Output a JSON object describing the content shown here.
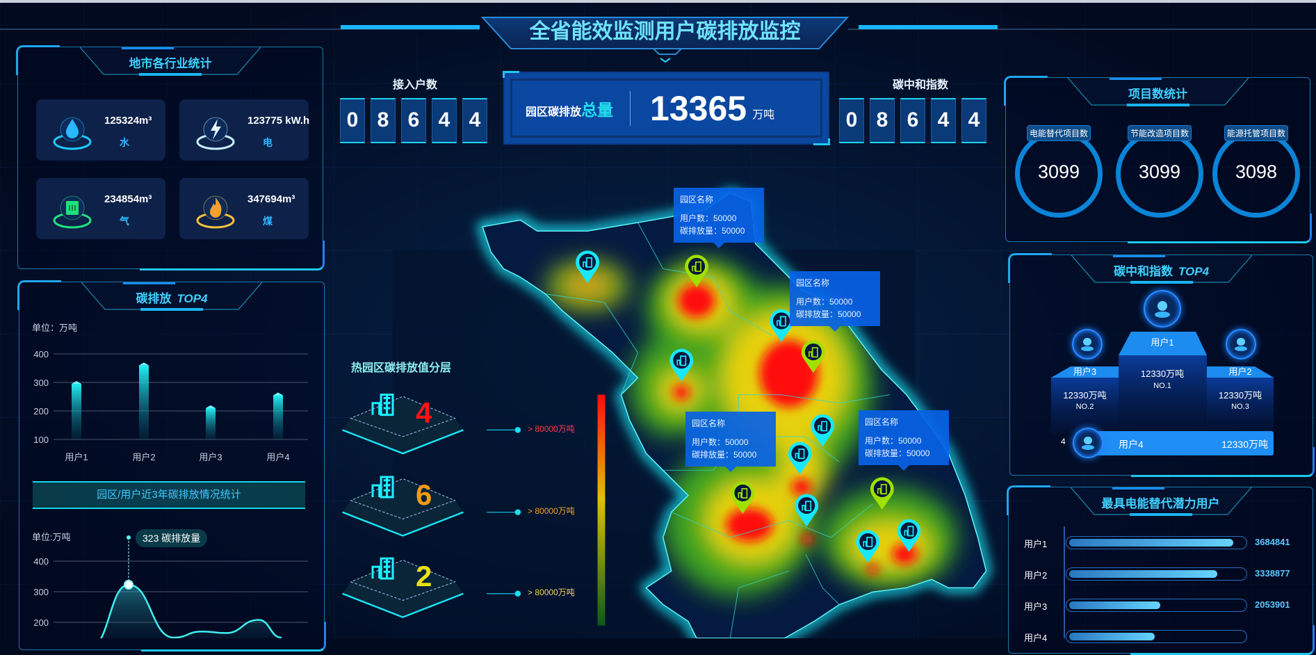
{
  "header": {
    "title": "全省能效监测用户碳排放监控"
  },
  "industry": {
    "title": "地市各行业统计",
    "items": [
      {
        "value": "125324m³",
        "label": "水",
        "icon": "water-drop-icon",
        "color": "#1ec8ff"
      },
      {
        "value": "123775 kW.h",
        "label": "电",
        "icon": "lightning-icon",
        "color": "#c8ecff"
      },
      {
        "value": "234854m³",
        "label": "气",
        "icon": "gas-icon",
        "color": "#22e07a"
      },
      {
        "value": "347694m³",
        "label": "煤",
        "icon": "flame-icon",
        "color": "#f2c23a"
      }
    ]
  },
  "emission_top": {
    "title": "碳排放",
    "badge": "TOP4",
    "unit": "单位：万吨"
  },
  "trend": {
    "title": "园区/用户近3年碳排放情况统计",
    "unit": "单位:万吨",
    "tooltip_value": "323",
    "tooltip_label": "碳排放量"
  },
  "chart_data": [
    {
      "type": "bar",
      "categories": [
        "用户1",
        "用户2",
        "用户3",
        "用户4"
      ],
      "values": [
        295,
        360,
        210,
        255
      ],
      "ylabel": "单位：万吨",
      "ylim": [
        100,
        400
      ],
      "yticks": [
        "100",
        "200",
        "300",
        "400"
      ],
      "grid": true,
      "color": "#22e6f0"
    },
    {
      "type": "area",
      "values": [
        120,
        323,
        150,
        170,
        165,
        208,
        150
      ],
      "ylabel": "单位:万吨",
      "yticks": [
        "200",
        "300",
        "400"
      ],
      "highlight": {
        "value": 323,
        "label": "碳排放量"
      },
      "grid": true,
      "color": "#3ff0f0"
    }
  ],
  "access": {
    "label": "接入户数",
    "digits": [
      "0",
      "8",
      "6",
      "4",
      "4"
    ]
  },
  "total": {
    "label": "园区碳排放",
    "highlight": "总量",
    "value": "13365",
    "unit": "万吨"
  },
  "neutral_index": {
    "label": "碳中和指数",
    "digits": [
      "0",
      "8",
      "6",
      "4",
      "4"
    ]
  },
  "heat_layers": {
    "title": "热园区碳排放值分层",
    "levels": [
      {
        "count": "4",
        "threshold": "> 80000万吨",
        "color": "#ff1414",
        "label_color": "#ff3b4e"
      },
      {
        "count": "6",
        "threshold": "> 80000万吨",
        "color": "#f29a12",
        "label_color": "#f5a623"
      },
      {
        "count": "2",
        "threshold": "> 80000万吨",
        "color": "#e8e014",
        "label_color": "#f3d45a"
      }
    ]
  },
  "map": {
    "tooltips": [
      {
        "name": "园区名称",
        "users": "用户数：50000",
        "emission": "碳排放量：50000"
      },
      {
        "name": "园区名称",
        "users": "用户数：50000",
        "emission": "碳排放量：50000"
      },
      {
        "name": "园区名称",
        "users": "用户数：50000",
        "emission": "碳排放量：50000"
      },
      {
        "name": "园区名称",
        "users": "用户数：50000",
        "emission": "碳排放量：50000"
      }
    ]
  },
  "projects": {
    "title": "项目数统计",
    "items": [
      {
        "label": "电能替代项目数",
        "value": "3099"
      },
      {
        "label": "节能改造项目数",
        "value": "3099"
      },
      {
        "label": "能源托管项目数",
        "value": "3098"
      }
    ]
  },
  "neutral_top": {
    "title": "碳中和指数",
    "badge": "TOP4",
    "ranks": [
      {
        "user": "用户1",
        "value": "12330万吨",
        "rank": "NO.1"
      },
      {
        "user": "用户2",
        "value": "12330万吨",
        "rank": "NO.3"
      },
      {
        "user": "用户3",
        "value": "12330万吨",
        "rank": "NO.2"
      },
      {
        "user": "用户4",
        "value": "12330万吨",
        "rank": "4"
      }
    ]
  },
  "potential": {
    "title": "最具电能替代潜力用户",
    "rows": [
      {
        "label": "用户1",
        "value": "3684841",
        "fraction": 0.94
      },
      {
        "label": "用户2",
        "value": "3338877",
        "fraction": 0.85
      },
      {
        "label": "用户3",
        "value": "2053901",
        "fraction": 0.52
      },
      {
        "label": "用户4",
        "fraction": 0.49
      }
    ]
  }
}
